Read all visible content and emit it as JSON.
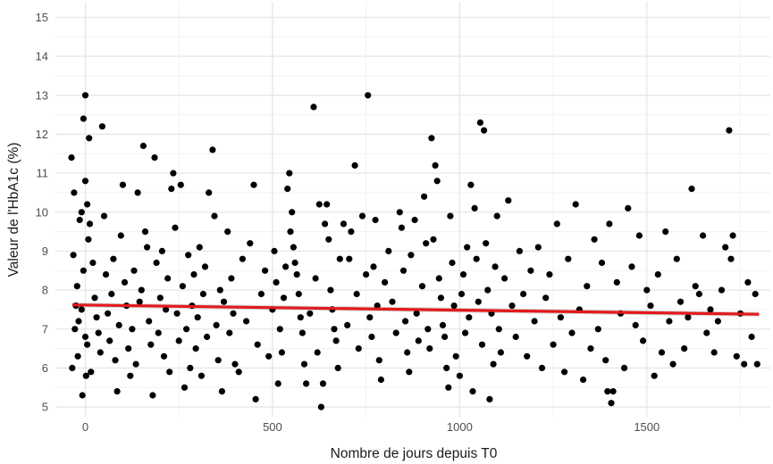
{
  "chart_data": {
    "type": "scatter",
    "title": "",
    "xlabel": "Nombre de jours depuis T0",
    "ylabel": "Valeur de l'HbA1c (%)",
    "xlim": [
      -80,
      1830
    ],
    "ylim": [
      4.75,
      15.4
    ],
    "x_ticks": [
      0,
      500,
      1000,
      1500
    ],
    "y_ticks": [
      5,
      6,
      7,
      8,
      9,
      10,
      11,
      12,
      13,
      14,
      15
    ],
    "x_tick_labels": [
      "0",
      "500",
      "1000",
      "1500"
    ],
    "y_tick_labels": [
      "5",
      "6",
      "7",
      "8",
      "9",
      "10",
      "11",
      "12",
      "13",
      "14",
      "15"
    ],
    "grid": true,
    "legend": "none",
    "point_color": "#000000",
    "trend": {
      "type": "linear",
      "color": "#e31a1c",
      "band_color": "#bdbdbd",
      "start": [
        -35,
        7.62
      ],
      "end": [
        1800,
        7.38
      ],
      "se": 0.06
    },
    "points_label": "HbA1c",
    "points": [
      [
        -37,
        11.4
      ],
      [
        -30,
        10.5
      ],
      [
        -32,
        8.9
      ],
      [
        -25,
        7.6
      ],
      [
        -28,
        7.0
      ],
      [
        -20,
        6.3
      ],
      [
        -35,
        6.0
      ],
      [
        -15,
        9.8
      ],
      [
        -10,
        10.0
      ],
      [
        -5,
        12.4
      ],
      [
        0,
        13.0
      ],
      [
        0,
        10.8
      ],
      [
        5,
        10.2
      ],
      [
        10,
        11.9
      ],
      [
        -5,
        8.5
      ],
      [
        -10,
        7.5
      ],
      [
        0,
        6.8
      ],
      [
        5,
        6.6
      ],
      [
        -8,
        5.3
      ],
      [
        2,
        5.8
      ],
      [
        15,
        5.9
      ],
      [
        -18,
        7.2
      ],
      [
        -22,
        8.1
      ],
      [
        8,
        9.3
      ],
      [
        12,
        9.7
      ],
      [
        20,
        8.7
      ],
      [
        25,
        7.8
      ],
      [
        30,
        7.3
      ],
      [
        35,
        6.9
      ],
      [
        40,
        6.4
      ],
      [
        45,
        12.2
      ],
      [
        50,
        9.9
      ],
      [
        55,
        8.4
      ],
      [
        60,
        7.4
      ],
      [
        65,
        6.7
      ],
      [
        70,
        7.9
      ],
      [
        75,
        8.8
      ],
      [
        80,
        6.2
      ],
      [
        85,
        5.4
      ],
      [
        90,
        7.1
      ],
      [
        95,
        9.4
      ],
      [
        100,
        10.7
      ],
      [
        105,
        8.2
      ],
      [
        110,
        7.6
      ],
      [
        115,
        6.5
      ],
      [
        120,
        5.8
      ],
      [
        125,
        7.0
      ],
      [
        130,
        8.5
      ],
      [
        135,
        6.1
      ],
      [
        140,
        10.5
      ],
      [
        145,
        7.7
      ],
      [
        150,
        8.0
      ],
      [
        155,
        11.7
      ],
      [
        160,
        9.5
      ],
      [
        165,
        9.1
      ],
      [
        170,
        7.2
      ],
      [
        175,
        6.6
      ],
      [
        180,
        5.3
      ],
      [
        185,
        11.4
      ],
      [
        190,
        8.7
      ],
      [
        195,
        6.9
      ],
      [
        200,
        7.8
      ],
      [
        205,
        9.0
      ],
      [
        210,
        6.3
      ],
      [
        215,
        7.5
      ],
      [
        220,
        8.3
      ],
      [
        225,
        5.9
      ],
      [
        230,
        10.6
      ],
      [
        235,
        11.0
      ],
      [
        240,
        9.6
      ],
      [
        245,
        7.4
      ],
      [
        250,
        6.7
      ],
      [
        255,
        10.7
      ],
      [
        260,
        8.1
      ],
      [
        265,
        5.5
      ],
      [
        270,
        7.0
      ],
      [
        275,
        8.9
      ],
      [
        280,
        6.0
      ],
      [
        285,
        7.6
      ],
      [
        290,
        8.4
      ],
      [
        295,
        6.5
      ],
      [
        300,
        7.3
      ],
      [
        305,
        9.1
      ],
      [
        310,
        5.8
      ],
      [
        315,
        7.9
      ],
      [
        320,
        8.6
      ],
      [
        325,
        6.8
      ],
      [
        330,
        10.5
      ],
      [
        340,
        11.6
      ],
      [
        345,
        9.9
      ],
      [
        350,
        7.1
      ],
      [
        355,
        6.2
      ],
      [
        360,
        8.0
      ],
      [
        365,
        5.4
      ],
      [
        370,
        7.7
      ],
      [
        380,
        9.5
      ],
      [
        385,
        6.9
      ],
      [
        390,
        8.3
      ],
      [
        395,
        7.4
      ],
      [
        400,
        6.1
      ],
      [
        410,
        5.9
      ],
      [
        420,
        8.8
      ],
      [
        430,
        7.2
      ],
      [
        440,
        9.2
      ],
      [
        450,
        10.7
      ],
      [
        455,
        5.2
      ],
      [
        460,
        6.6
      ],
      [
        470,
        7.9
      ],
      [
        480,
        8.5
      ],
      [
        490,
        6.3
      ],
      [
        500,
        7.5
      ],
      [
        505,
        9.0
      ],
      [
        510,
        8.2
      ],
      [
        515,
        5.6
      ],
      [
        520,
        7.0
      ],
      [
        525,
        6.4
      ],
      [
        530,
        7.8
      ],
      [
        535,
        8.6
      ],
      [
        540,
        10.6
      ],
      [
        545,
        11.0
      ],
      [
        548,
        9.5
      ],
      [
        552,
        10.0
      ],
      [
        556,
        9.1
      ],
      [
        560,
        8.7
      ],
      [
        565,
        8.4
      ],
      [
        570,
        7.9
      ],
      [
        575,
        7.3
      ],
      [
        580,
        6.9
      ],
      [
        585,
        6.1
      ],
      [
        590,
        5.6
      ],
      [
        600,
        7.4
      ],
      [
        610,
        12.7
      ],
      [
        615,
        8.3
      ],
      [
        620,
        6.4
      ],
      [
        625,
        10.2
      ],
      [
        630,
        5.0
      ],
      [
        635,
        5.6
      ],
      [
        640,
        9.7
      ],
      [
        645,
        10.2
      ],
      [
        650,
        9.3
      ],
      [
        655,
        8.0
      ],
      [
        660,
        7.5
      ],
      [
        665,
        7.0
      ],
      [
        670,
        6.7
      ],
      [
        675,
        6.0
      ],
      [
        680,
        8.8
      ],
      [
        690,
        9.7
      ],
      [
        700,
        7.1
      ],
      [
        705,
        8.8
      ],
      [
        710,
        9.5
      ],
      [
        720,
        11.2
      ],
      [
        725,
        7.9
      ],
      [
        730,
        6.5
      ],
      [
        740,
        9.9
      ],
      [
        750,
        8.4
      ],
      [
        755,
        13.0
      ],
      [
        760,
        7.3
      ],
      [
        765,
        6.8
      ],
      [
        770,
        8.6
      ],
      [
        775,
        9.8
      ],
      [
        780,
        7.6
      ],
      [
        785,
        6.2
      ],
      [
        790,
        5.7
      ],
      [
        800,
        8.2
      ],
      [
        810,
        9.0
      ],
      [
        820,
        7.7
      ],
      [
        830,
        6.9
      ],
      [
        840,
        10.0
      ],
      [
        845,
        9.6
      ],
      [
        850,
        8.5
      ],
      [
        855,
        7.2
      ],
      [
        860,
        6.4
      ],
      [
        865,
        5.9
      ],
      [
        870,
        8.9
      ],
      [
        880,
        9.8
      ],
      [
        885,
        7.4
      ],
      [
        890,
        6.7
      ],
      [
        900,
        8.1
      ],
      [
        905,
        10.4
      ],
      [
        910,
        9.2
      ],
      [
        915,
        7.0
      ],
      [
        920,
        6.5
      ],
      [
        925,
        11.9
      ],
      [
        930,
        9.3
      ],
      [
        935,
        11.2
      ],
      [
        940,
        10.8
      ],
      [
        945,
        8.3
      ],
      [
        950,
        7.8
      ],
      [
        955,
        7.1
      ],
      [
        960,
        6.8
      ],
      [
        965,
        6.0
      ],
      [
        970,
        5.5
      ],
      [
        975,
        9.9
      ],
      [
        980,
        8.7
      ],
      [
        985,
        7.6
      ],
      [
        990,
        6.3
      ],
      [
        1000,
        5.8
      ],
      [
        1005,
        7.9
      ],
      [
        1010,
        8.4
      ],
      [
        1015,
        6.9
      ],
      [
        1020,
        9.1
      ],
      [
        1025,
        7.3
      ],
      [
        1030,
        10.7
      ],
      [
        1035,
        5.4
      ],
      [
        1040,
        10.1
      ],
      [
        1045,
        8.8
      ],
      [
        1050,
        7.7
      ],
      [
        1055,
        12.3
      ],
      [
        1060,
        6.6
      ],
      [
        1065,
        12.1
      ],
      [
        1070,
        9.2
      ],
      [
        1075,
        8.0
      ],
      [
        1080,
        5.2
      ],
      [
        1085,
        7.4
      ],
      [
        1090,
        6.1
      ],
      [
        1095,
        8.6
      ],
      [
        1100,
        9.9
      ],
      [
        1105,
        7.0
      ],
      [
        1110,
        6.4
      ],
      [
        1120,
        8.3
      ],
      [
        1130,
        10.3
      ],
      [
        1140,
        7.6
      ],
      [
        1150,
        6.8
      ],
      [
        1160,
        9.0
      ],
      [
        1170,
        7.9
      ],
      [
        1180,
        6.3
      ],
      [
        1190,
        8.5
      ],
      [
        1200,
        7.2
      ],
      [
        1210,
        9.1
      ],
      [
        1220,
        6.0
      ],
      [
        1230,
        7.8
      ],
      [
        1240,
        8.4
      ],
      [
        1250,
        6.6
      ],
      [
        1260,
        9.7
      ],
      [
        1270,
        7.3
      ],
      [
        1280,
        5.9
      ],
      [
        1290,
        8.8
      ],
      [
        1300,
        6.9
      ],
      [
        1310,
        10.2
      ],
      [
        1320,
        7.5
      ],
      [
        1330,
        5.7
      ],
      [
        1340,
        8.1
      ],
      [
        1350,
        6.5
      ],
      [
        1360,
        9.3
      ],
      [
        1370,
        7.0
      ],
      [
        1380,
        8.7
      ],
      [
        1390,
        6.2
      ],
      [
        1395,
        5.4
      ],
      [
        1400,
        9.7
      ],
      [
        1405,
        5.1
      ],
      [
        1410,
        5.4
      ],
      [
        1420,
        8.2
      ],
      [
        1430,
        7.4
      ],
      [
        1440,
        6.0
      ],
      [
        1450,
        10.1
      ],
      [
        1460,
        8.6
      ],
      [
        1470,
        7.1
      ],
      [
        1480,
        9.4
      ],
      [
        1490,
        6.7
      ],
      [
        1500,
        8.0
      ],
      [
        1510,
        7.6
      ],
      [
        1520,
        5.8
      ],
      [
        1530,
        8.4
      ],
      [
        1540,
        6.4
      ],
      [
        1550,
        9.5
      ],
      [
        1560,
        7.2
      ],
      [
        1570,
        6.1
      ],
      [
        1580,
        8.8
      ],
      [
        1590,
        7.7
      ],
      [
        1600,
        6.5
      ],
      [
        1610,
        7.3
      ],
      [
        1620,
        10.6
      ],
      [
        1630,
        8.1
      ],
      [
        1640,
        7.9
      ],
      [
        1650,
        9.4
      ],
      [
        1660,
        6.9
      ],
      [
        1670,
        7.5
      ],
      [
        1680,
        6.4
      ],
      [
        1690,
        7.2
      ],
      [
        1700,
        8.0
      ],
      [
        1710,
        9.1
      ],
      [
        1720,
        12.1
      ],
      [
        1725,
        8.8
      ],
      [
        1730,
        9.4
      ],
      [
        1740,
        6.3
      ],
      [
        1750,
        7.4
      ],
      [
        1760,
        6.1
      ],
      [
        1770,
        8.2
      ],
      [
        1780,
        6.8
      ],
      [
        1790,
        7.9
      ],
      [
        1795,
        6.1
      ]
    ]
  }
}
